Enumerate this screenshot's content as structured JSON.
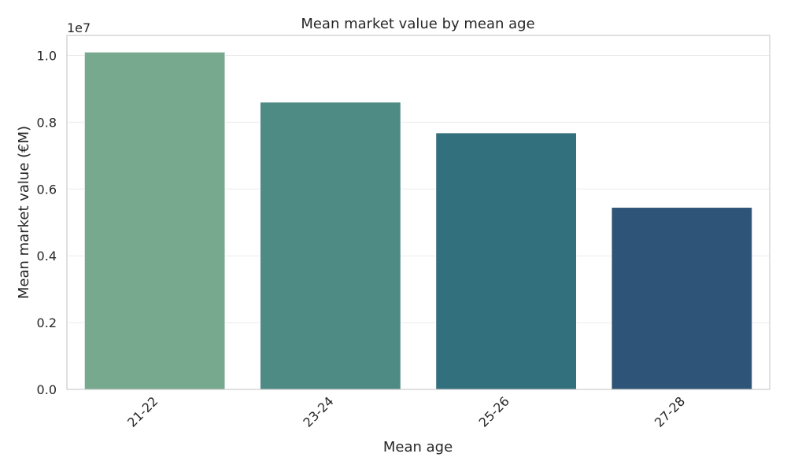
{
  "chart_data": {
    "type": "bar",
    "title": "Mean market value by mean age",
    "xlabel": "Mean age",
    "ylabel": "Mean market value (€M)",
    "y_offset_label": "1e7",
    "categories": [
      "21-22",
      "23-24",
      "25-26",
      "27-28"
    ],
    "values": [
      10100000,
      8600000,
      7680000,
      5450000
    ],
    "colors": [
      "#77a98e",
      "#4f8b85",
      "#33707d",
      "#2e5577"
    ],
    "ylim": [
      0,
      10600000
    ],
    "yticks": [
      0,
      2000000,
      4000000,
      6000000,
      8000000,
      10000000
    ],
    "ytick_labels": [
      "0.0",
      "0.2",
      "0.4",
      "0.6",
      "0.8",
      "1.0"
    ],
    "grid": true,
    "xtick_rotation": 45
  }
}
